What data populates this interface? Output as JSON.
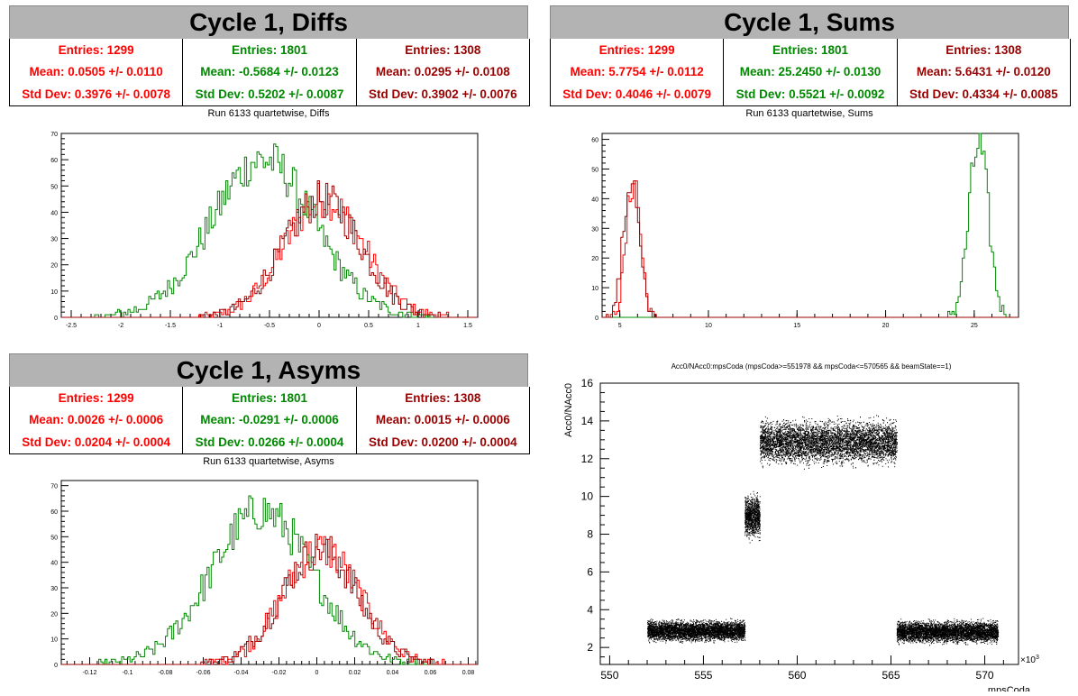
{
  "colors": {
    "red": "#ff0000",
    "green": "#008800",
    "darkred": "#990000"
  },
  "panels": {
    "diffs": {
      "title": "Cycle 1, Diffs",
      "subtitle": "Run 6133 quartetwise, Diffs",
      "stats": [
        {
          "entries": "Entries: 1299",
          "mean": "Mean: 0.0505 +/- 0.0110",
          "std": "Std Dev: 0.3976 +/- 0.0078"
        },
        {
          "entries": "Entries: 1801",
          "mean": "Mean: -0.5684 +/- 0.0123",
          "std": "Std Dev: 0.5202 +/- 0.0087"
        },
        {
          "entries": "Entries: 1308",
          "mean": "Mean: 0.0295 +/- 0.0108",
          "std": "Std Dev: 0.3902 +/- 0.0076"
        }
      ]
    },
    "sums": {
      "title": "Cycle 1, Sums",
      "subtitle": "Run 6133 quartetwise, Sums",
      "stats": [
        {
          "entries": "Entries: 1299",
          "mean": "Mean: 5.7754 +/- 0.0112",
          "std": "Std Dev: 0.4046 +/- 0.0079"
        },
        {
          "entries": "Entries: 1801",
          "mean": "Mean: 25.2450 +/- 0.0130",
          "std": "Std Dev: 0.5521 +/- 0.0092"
        },
        {
          "entries": "Entries: 1308",
          "mean": "Mean: 5.6431 +/- 0.0120",
          "std": "Std Dev: 0.4334 +/- 0.0085"
        }
      ]
    },
    "asyms": {
      "title": "Cycle 1, Asyms",
      "subtitle": "Run 6133 quartetwise, Asyms",
      "stats": [
        {
          "entries": "Entries: 1299",
          "mean": "Mean: 0.0026 +/- 0.0006",
          "std": "Std Dev: 0.0204 +/- 0.0004"
        },
        {
          "entries": "Entries: 1801",
          "mean": "Mean: -0.0291 +/- 0.0006",
          "std": "Std Dev: 0.0266 +/- 0.0004"
        },
        {
          "entries": "Entries: 1308",
          "mean": "Mean: 0.0015 +/- 0.0006",
          "std": "Std Dev: 0.0200 +/- 0.0004"
        }
      ]
    }
  },
  "chart_data": [
    {
      "id": "diffs",
      "type": "histogram",
      "xlim": [
        -2.6,
        1.6
      ],
      "ylim": [
        0,
        70
      ],
      "xticks": [
        "-2.5",
        "-2",
        "-1.5",
        "-1",
        "-0.5",
        "0",
        "0.5",
        "1",
        "1.5"
      ],
      "xtick_values": [
        -2.5,
        -2,
        -1.5,
        -1,
        -0.5,
        0,
        0.5,
        1,
        1.5
      ],
      "yticks": [
        0,
        10,
        20,
        30,
        40,
        50,
        60,
        70
      ],
      "series": [
        {
          "color": "red",
          "mean": 0.05,
          "sd": 0.4,
          "peak": 45
        },
        {
          "color": "green",
          "mean": -0.57,
          "sd": 0.52,
          "peak": 60
        },
        {
          "color": "darkred",
          "mean": 0.03,
          "sd": 0.39,
          "peak": 45
        }
      ]
    },
    {
      "id": "sums",
      "type": "histogram",
      "xlim": [
        4,
        27.5
      ],
      "ylim": [
        0,
        62
      ],
      "xticks": [
        "5",
        "10",
        "15",
        "20",
        "25"
      ],
      "xtick_values": [
        5,
        10,
        15,
        20,
        25
      ],
      "yticks": [
        0,
        10,
        20,
        30,
        40,
        50,
        60
      ],
      "series": [
        {
          "color": "red",
          "mean": 5.78,
          "sd": 0.4,
          "peak": 47
        },
        {
          "color": "green",
          "mean": 25.25,
          "sd": 0.55,
          "peak": 58
        },
        {
          "color": "darkred",
          "mean": 5.64,
          "sd": 0.43,
          "peak": 47
        }
      ]
    },
    {
      "id": "asyms",
      "type": "histogram",
      "xlim": [
        -0.135,
        0.085
      ],
      "ylim": [
        0,
        72
      ],
      "xticks": [
        "-0.12",
        "-0.1",
        "-0.08",
        "-0.06",
        "-0.04",
        "-0.02",
        "0",
        "0.02",
        "0.04",
        "0.06",
        "0.08"
      ],
      "xtick_values": [
        -0.12,
        -0.1,
        -0.08,
        -0.06,
        -0.04,
        -0.02,
        0,
        0.02,
        0.04,
        0.06,
        0.08
      ],
      "yticks": [
        0,
        10,
        20,
        30,
        40,
        50,
        60,
        70
      ],
      "series": [
        {
          "color": "red",
          "mean": 0.0026,
          "sd": 0.0204,
          "peak": 45
        },
        {
          "color": "green",
          "mean": -0.029,
          "sd": 0.0266,
          "peak": 60
        },
        {
          "color": "darkred",
          "mean": 0.0015,
          "sd": 0.02,
          "peak": 45
        }
      ]
    },
    {
      "id": "scatter",
      "type": "scatter",
      "title": "Acc0/NAcc0:mpsCoda (mpsCoda>=551978 && mpsCoda<=570565 && beamState==1)",
      "xlabel": "mpsCoda",
      "ylabel": "Acc0/NAcc0",
      "xexp": "×10",
      "xlim": [
        549.5,
        571.8
      ],
      "ylim": [
        1.1,
        16
      ],
      "xticks": [
        "550",
        "555",
        "560",
        "565",
        "570"
      ],
      "xtick_values": [
        550,
        555,
        560,
        565,
        570
      ],
      "yticks": [
        "2",
        "4",
        "6",
        "8",
        "10",
        "12",
        "14",
        "16"
      ],
      "ytick_values": [
        2,
        4,
        6,
        8,
        10,
        12,
        14,
        16
      ],
      "clusters": [
        {
          "x": [
            552.0,
            557.2
          ],
          "y": [
            2.2,
            3.6
          ]
        },
        {
          "x": [
            557.2,
            558.0
          ],
          "y": [
            7.5,
            10.4
          ]
        },
        {
          "x": [
            558.0,
            565.3
          ],
          "y": [
            11.4,
            14.4
          ]
        },
        {
          "x": [
            565.3,
            570.7
          ],
          "y": [
            2.1,
            3.6
          ]
        }
      ]
    }
  ]
}
